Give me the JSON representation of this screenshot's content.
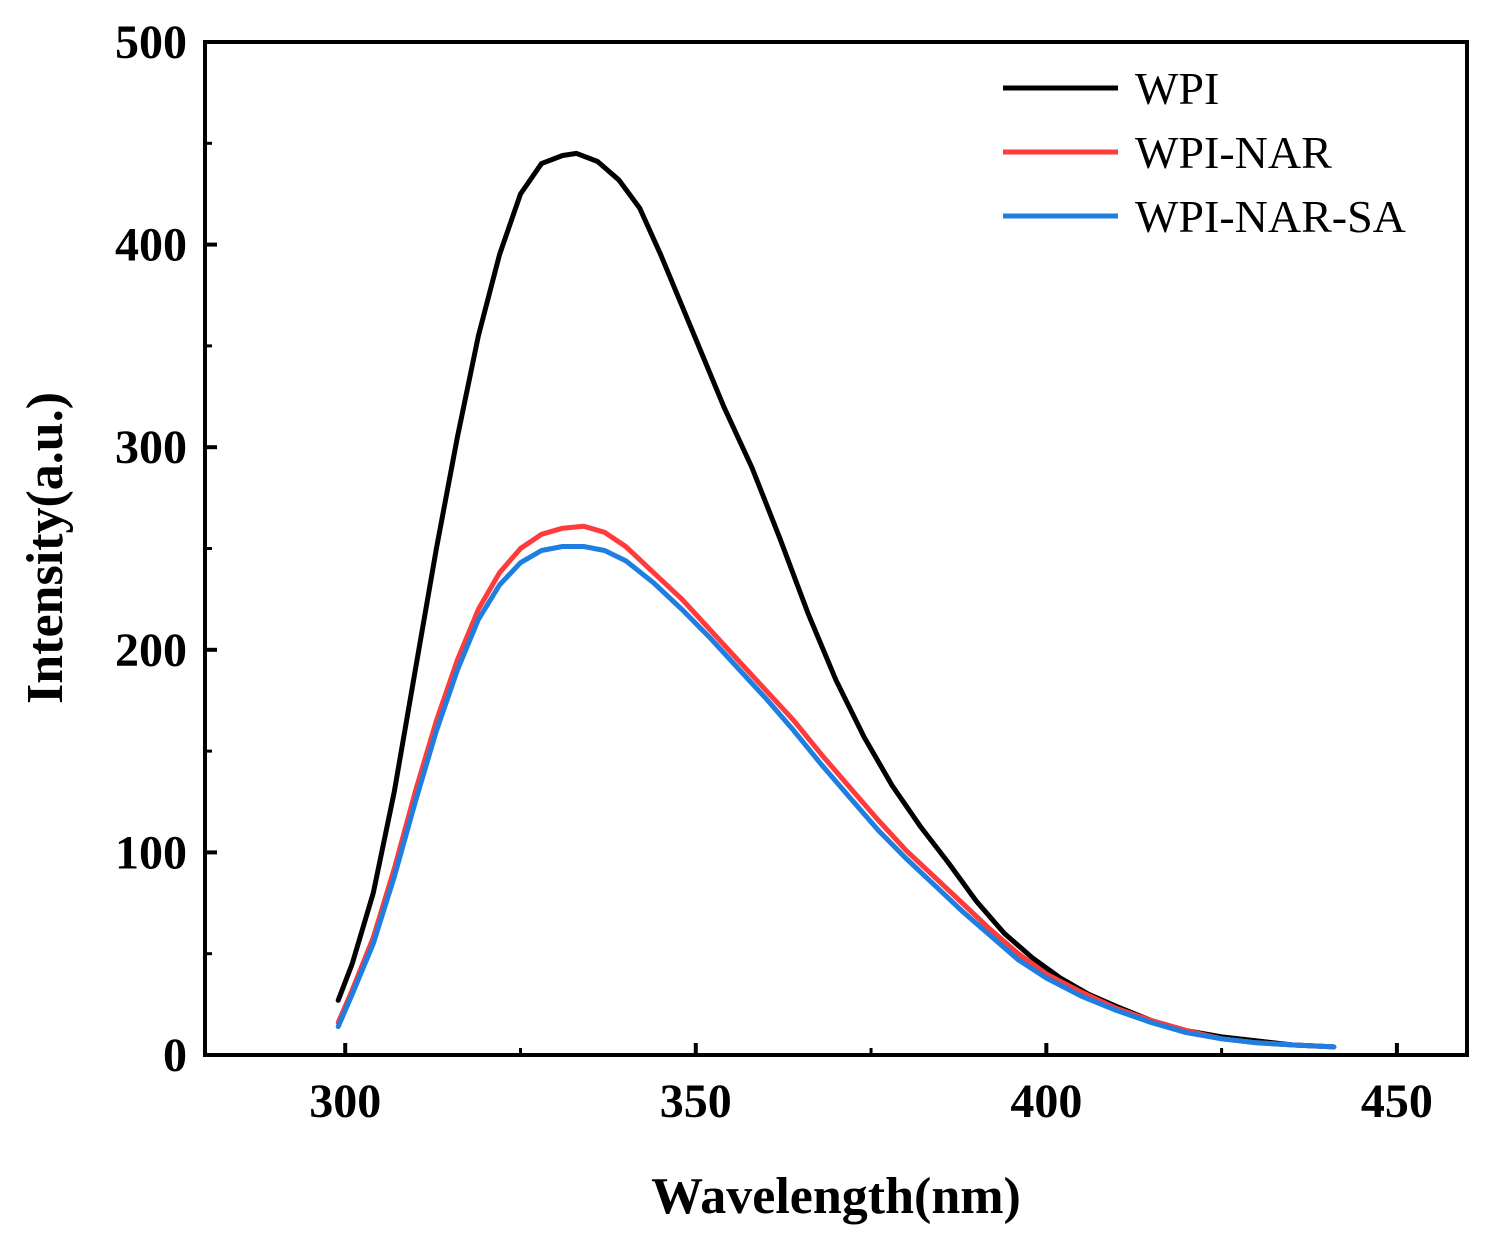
{
  "chart_data": {
    "type": "line",
    "title": "",
    "xlabel": "Wavelength(nm)",
    "ylabel": "Intensity(a.u.)",
    "xlim": [
      280,
      460
    ],
    "ylim": [
      0,
      500
    ],
    "xticks": [
      300,
      350,
      400,
      450
    ],
    "yticks": [
      0,
      100,
      200,
      300,
      400,
      500
    ],
    "legend_position": "top-right",
    "grid": false,
    "series": [
      {
        "name": "WPI",
        "color": "#000000",
        "x": [
          299,
          301,
          304,
          307,
          310,
          313,
          316,
          319,
          322,
          325,
          328,
          331,
          333,
          336,
          339,
          342,
          345,
          348,
          351,
          354,
          358,
          362,
          366,
          370,
          374,
          378,
          382,
          386,
          390,
          394,
          398,
          402,
          406,
          410,
          415,
          420,
          425,
          430,
          435,
          441
        ],
        "y": [
          27,
          45,
          80,
          130,
          190,
          250,
          305,
          355,
          395,
          425,
          440,
          444,
          445,
          441,
          432,
          418,
          395,
          370,
          345,
          320,
          290,
          255,
          218,
          185,
          157,
          133,
          113,
          95,
          76,
          60,
          48,
          38,
          30,
          24,
          17,
          12,
          9,
          7,
          5,
          4
        ]
      },
      {
        "name": "WPI-NAR",
        "color": "#ff3b3b",
        "x": [
          299,
          301,
          304,
          307,
          310,
          313,
          316,
          319,
          322,
          325,
          328,
          331,
          334,
          337,
          340,
          344,
          348,
          352,
          356,
          360,
          364,
          368,
          372,
          376,
          380,
          384,
          388,
          392,
          396,
          400,
          405,
          410,
          415,
          420,
          425,
          430,
          435,
          441
        ],
        "y": [
          16,
          32,
          58,
          92,
          130,
          165,
          195,
          220,
          238,
          250,
          257,
          260,
          261,
          258,
          251,
          238,
          225,
          210,
          195,
          180,
          165,
          148,
          132,
          116,
          101,
          88,
          75,
          62,
          50,
          40,
          31,
          23,
          17,
          12,
          8,
          6,
          5,
          4
        ]
      },
      {
        "name": "WPI-NAR-SA",
        "color": "#1f7fe0",
        "x": [
          299,
          301,
          304,
          307,
          310,
          313,
          316,
          319,
          322,
          325,
          328,
          331,
          334,
          337,
          340,
          344,
          348,
          352,
          356,
          360,
          364,
          368,
          372,
          376,
          380,
          384,
          388,
          392,
          396,
          400,
          405,
          410,
          415,
          420,
          425,
          430,
          435,
          441
        ],
        "y": [
          14,
          30,
          55,
          88,
          125,
          160,
          190,
          215,
          232,
          243,
          249,
          251,
          251,
          249,
          244,
          233,
          220,
          206,
          191,
          176,
          160,
          143,
          127,
          111,
          97,
          84,
          71,
          59,
          47,
          38,
          29,
          22,
          16,
          11,
          8,
          6,
          5,
          4
        ]
      }
    ]
  }
}
